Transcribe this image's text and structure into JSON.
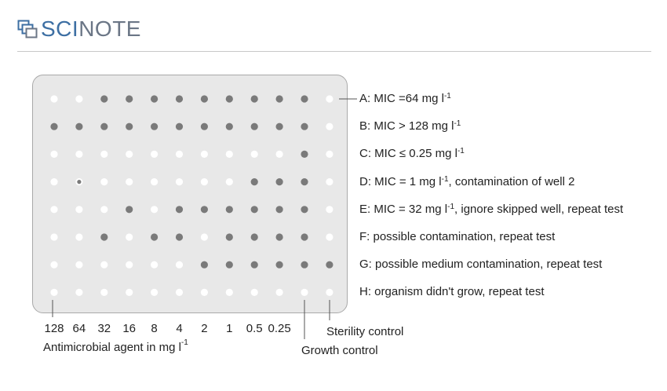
{
  "brand": {
    "part1": "SCI",
    "part2": "NOTE",
    "logo_icon": "scinote-logo-icon"
  },
  "plate": {
    "empty_color": "#ffffff",
    "growth_color": "#7a7a7a",
    "rows": [
      {
        "id": "A",
        "wells": [
          0,
          0,
          1,
          1,
          1,
          1,
          1,
          1,
          1,
          1,
          1,
          0
        ],
        "label_pre": "A: MIC =64 mg l",
        "label_sup": "-1",
        "label_post": ""
      },
      {
        "id": "B",
        "wells": [
          1,
          1,
          1,
          1,
          1,
          1,
          1,
          1,
          1,
          1,
          1,
          0
        ],
        "label_pre": "B: MIC > 128 mg l",
        "label_sup": "-1",
        "label_post": ""
      },
      {
        "id": "C",
        "wells": [
          0,
          0,
          0,
          0,
          0,
          0,
          0,
          0,
          0,
          0,
          1,
          0
        ],
        "label_pre": "C: MIC ≤ 0.25 mg l",
        "label_sup": "-1",
        "label_post": ""
      },
      {
        "id": "D",
        "wells": [
          0,
          2,
          0,
          0,
          0,
          0,
          0,
          0,
          1,
          1,
          1,
          0
        ],
        "label_pre": "D: MIC = 1 mg l",
        "label_sup": "-1",
        "label_post": ", contamination of well 2"
      },
      {
        "id": "E",
        "wells": [
          0,
          0,
          0,
          1,
          0,
          1,
          1,
          1,
          1,
          1,
          1,
          0
        ],
        "label_pre": "E: MIC = 32 mg l",
        "label_sup": "-1",
        "label_post": ", ignore skipped well, repeat test"
      },
      {
        "id": "F",
        "wells": [
          0,
          0,
          1,
          0,
          1,
          1,
          0,
          1,
          1,
          1,
          1,
          0
        ],
        "label_pre": "F: possible contamination, repeat test",
        "label_sup": "",
        "label_post": ""
      },
      {
        "id": "G",
        "wells": [
          0,
          0,
          0,
          0,
          0,
          0,
          1,
          1,
          1,
          1,
          1,
          1
        ],
        "label_pre": "G: possible medium contamination, repeat test",
        "label_sup": "",
        "label_post": ""
      },
      {
        "id": "H",
        "wells": [
          0,
          0,
          0,
          0,
          0,
          0,
          0,
          0,
          0,
          0,
          0,
          0
        ],
        "label_pre": "H: organism didn't grow, repeat test",
        "label_sup": "",
        "label_post": ""
      }
    ]
  },
  "concentrations": [
    "128",
    "64",
    "32",
    "16",
    "8",
    "4",
    "2",
    "1",
    "0.5",
    "0.25"
  ],
  "axis_label": {
    "text": "Antimicrobial agent in mg l",
    "sup": "-1"
  },
  "controls": {
    "growth": "Growth control",
    "sterility": "Sterility control"
  }
}
